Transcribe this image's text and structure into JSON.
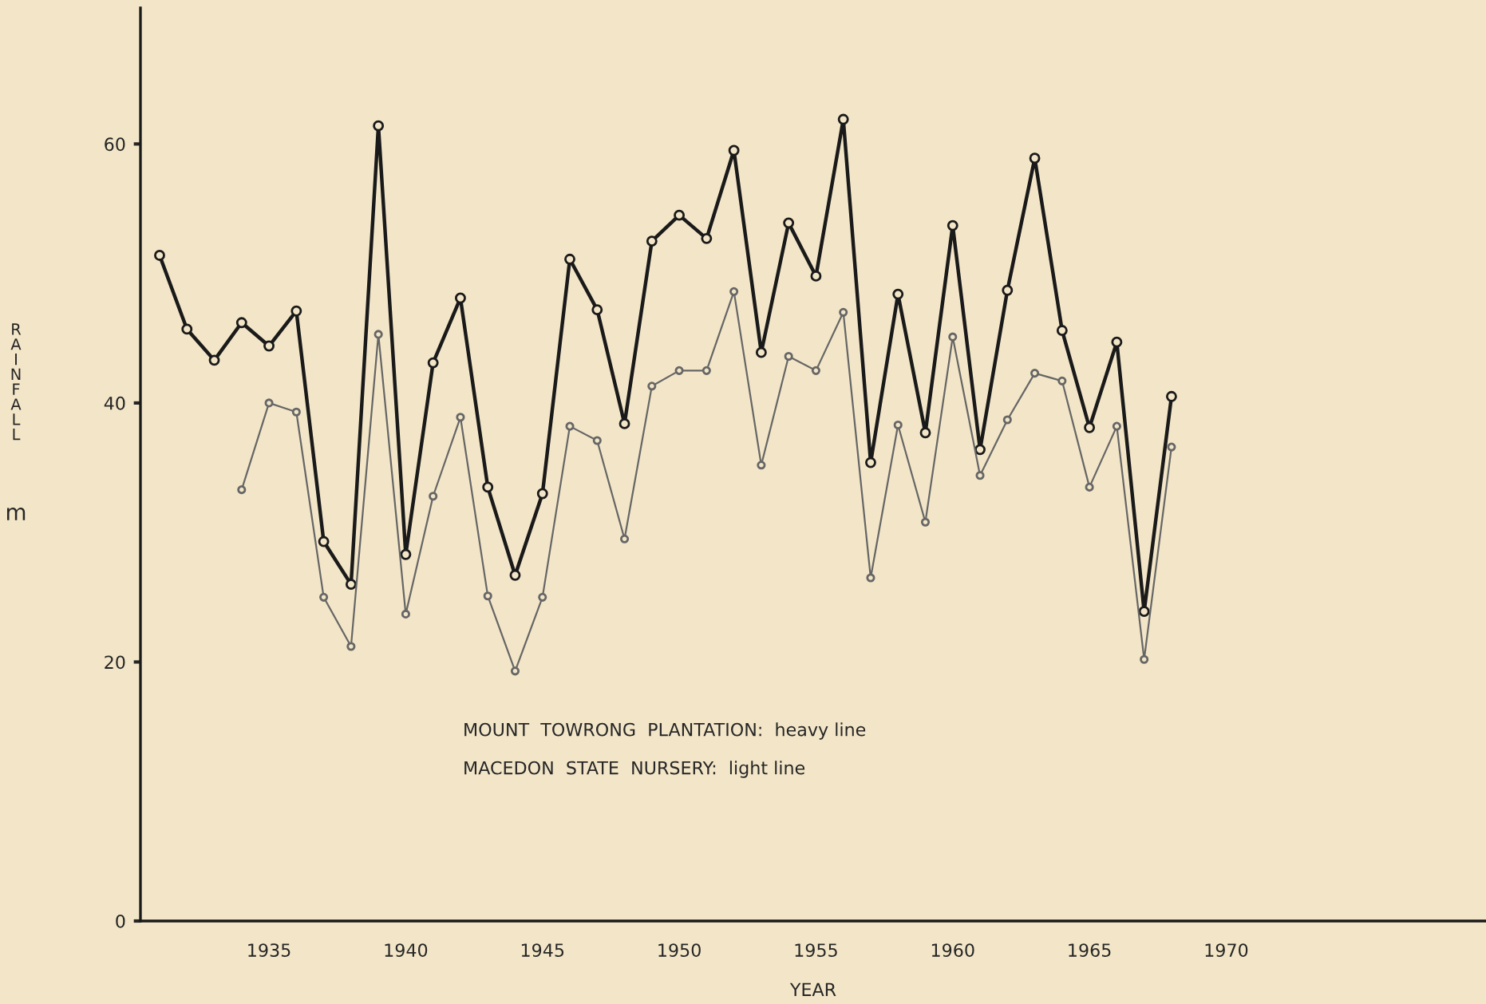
{
  "chart_data": {
    "type": "line",
    "xlabel": "YEAR",
    "marker": "circle",
    "line_style": "solid",
    "grid": false,
    "legend": false,
    "xlim": [
      1930.3,
      1979.5
    ],
    "xticks": [
      1935,
      1940,
      1945,
      1950,
      1955,
      1960,
      1965,
      1970
    ],
    "ylim": [
      0,
      70.5
    ],
    "yticks": [
      0,
      20,
      40,
      60
    ],
    "annotations": [
      "RAINFALL",
      "m",
      "MOUNT  TOWRONG  PLANTATION:  heavy line",
      "MACEDON  STATE  NURSERY:  light line"
    ],
    "series": [
      {
        "color": "#1a1a1a",
        "x": [
          1931,
          1932,
          1933,
          1934,
          1935,
          1936,
          1937,
          1938,
          1939,
          1940,
          1941,
          1942,
          1943,
          1944,
          1945,
          1946,
          1947,
          1948,
          1949,
          1950,
          1951,
          1952,
          1953,
          1954,
          1955,
          1956,
          1957,
          1958,
          1959,
          1960,
          1961,
          1962,
          1963,
          1964,
          1965,
          1966,
          1967,
          1968
        ],
        "values": [
          51.4,
          45.7,
          43.3,
          46.2,
          44.4,
          47.1,
          29.3,
          26.0,
          61.4,
          28.3,
          43.1,
          48.1,
          33.5,
          26.7,
          33.0,
          51.1,
          47.2,
          38.4,
          52.5,
          54.5,
          52.7,
          59.5,
          43.9,
          53.9,
          49.8,
          61.9,
          35.4,
          48.4,
          37.7,
          53.7,
          36.4,
          48.7,
          58.9,
          45.6,
          38.1,
          44.7,
          23.9,
          40.5
        ]
      },
      {
        "color": "#666666",
        "x": [
          1934,
          1935,
          1936,
          1937,
          1938,
          1939,
          1940,
          1941,
          1942,
          1943,
          1944,
          1945,
          1946,
          1947,
          1948,
          1949,
          1950,
          1951,
          1952,
          1953,
          1954,
          1955,
          1956,
          1957,
          1958,
          1959,
          1960,
          1961,
          1962,
          1963,
          1964,
          1965,
          1966,
          1967,
          1968
        ],
        "values": [
          33.3,
          40.0,
          39.3,
          25.0,
          21.2,
          45.3,
          23.7,
          32.8,
          38.9,
          25.1,
          19.3,
          25.0,
          38.2,
          37.1,
          29.5,
          41.3,
          42.5,
          42.5,
          48.6,
          35.2,
          43.6,
          42.5,
          47.0,
          26.5,
          38.3,
          30.8,
          45.1,
          34.4,
          38.7,
          42.3,
          41.7,
          33.5,
          38.2,
          20.2,
          36.6
        ]
      }
    ]
  }
}
